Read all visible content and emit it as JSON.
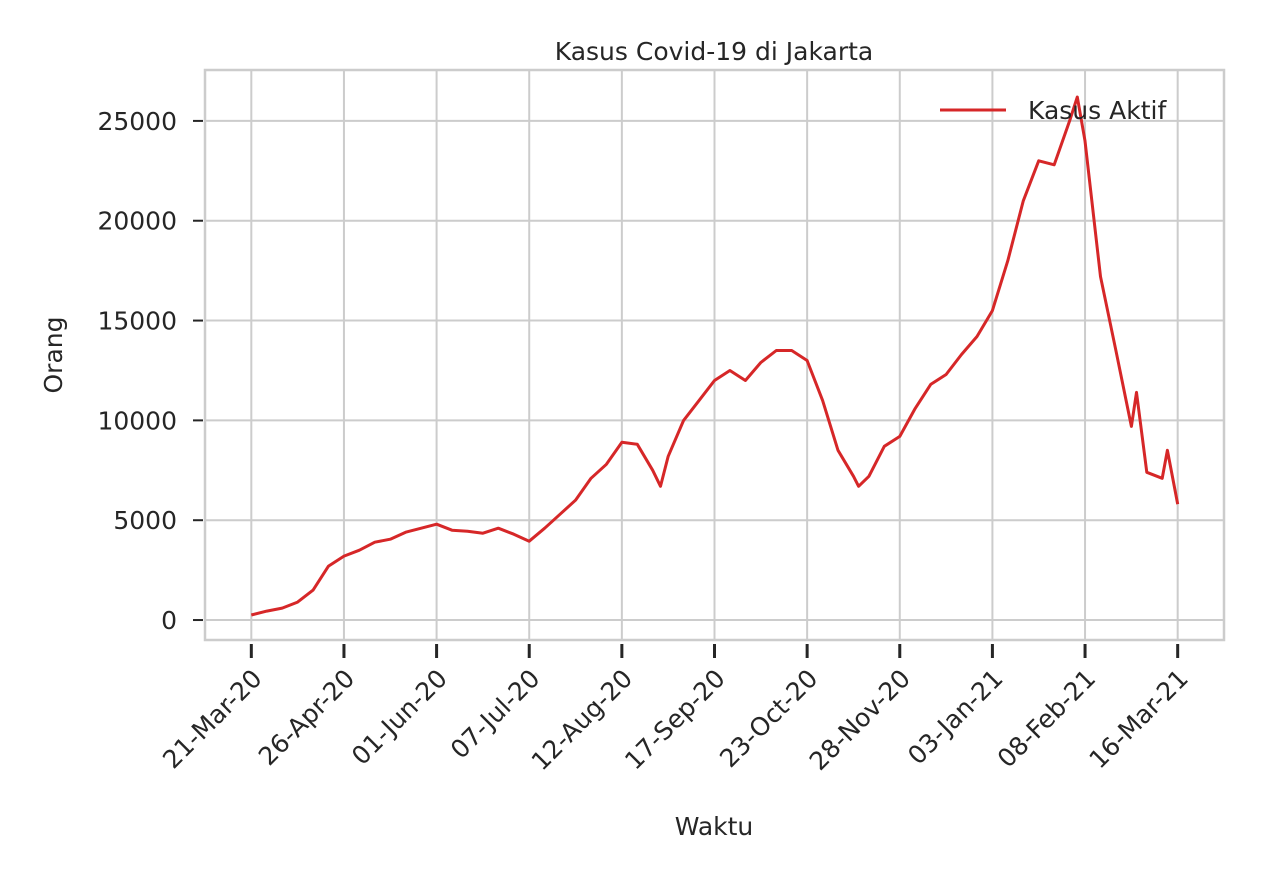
{
  "chart_data": {
    "type": "line",
    "title": "Kasus Covid-19 di Jakarta",
    "xlabel": "Waktu",
    "ylabel": "Orang",
    "x": [
      "2020-03-21",
      "2020-03-27",
      "2020-04-02",
      "2020-04-08",
      "2020-04-14",
      "2020-04-20",
      "2020-04-26",
      "2020-05-02",
      "2020-05-08",
      "2020-05-14",
      "2020-05-20",
      "2020-05-26",
      "2020-06-01",
      "2020-06-07",
      "2020-06-13",
      "2020-06-19",
      "2020-06-25",
      "2020-07-01",
      "2020-07-07",
      "2020-07-13",
      "2020-07-19",
      "2020-07-25",
      "2020-07-31",
      "2020-08-06",
      "2020-08-12",
      "2020-08-18",
      "2020-08-24",
      "2020-08-27",
      "2020-08-30",
      "2020-09-05",
      "2020-09-11",
      "2020-09-17",
      "2020-09-23",
      "2020-09-29",
      "2020-10-05",
      "2020-10-11",
      "2020-10-17",
      "2020-10-23",
      "2020-10-29",
      "2020-11-04",
      "2020-11-10",
      "2020-11-12",
      "2020-11-16",
      "2020-11-22",
      "2020-11-28",
      "2020-12-04",
      "2020-12-10",
      "2020-12-16",
      "2020-12-22",
      "2020-12-28",
      "2021-01-03",
      "2021-01-09",
      "2021-01-15",
      "2021-01-21",
      "2021-01-27",
      "2021-02-02",
      "2021-02-05",
      "2021-02-08",
      "2021-02-14",
      "2021-02-20",
      "2021-02-26",
      "2021-02-28",
      "2021-03-04",
      "2021-03-10",
      "2021-03-12",
      "2021-03-16"
    ],
    "series": [
      {
        "name": "Kasus Aktif",
        "color": "#d62728",
        "values": [
          250,
          450,
          600,
          900,
          1500,
          2700,
          3200,
          3500,
          3900,
          4050,
          4400,
          4600,
          4800,
          4500,
          4450,
          4350,
          4600,
          4300,
          3950,
          4600,
          5300,
          6000,
          7100,
          7800,
          8900,
          8800,
          7500,
          6700,
          8200,
          10000,
          11000,
          12000,
          12500,
          12000,
          12900,
          13500,
          13500,
          13000,
          11000,
          8500,
          7200,
          6700,
          7200,
          8700,
          9200,
          10600,
          11800,
          12300,
          13300,
          14200,
          15500,
          18000,
          21000,
          23000,
          22800,
          25000,
          26200,
          24000,
          17200,
          13500,
          9700,
          11400,
          7400,
          7100,
          8500,
          5800
        ]
      }
    ],
    "xlim": [
      "2020-03-03",
      "2021-04-03"
    ],
    "xticks": [
      {
        "value": "2020-03-21",
        "label": "21-Mar-20"
      },
      {
        "value": "2020-04-26",
        "label": "26-Apr-20"
      },
      {
        "value": "2020-06-01",
        "label": "01-Jun-20"
      },
      {
        "value": "2020-07-07",
        "label": "07-Jul-20"
      },
      {
        "value": "2020-08-12",
        "label": "12-Aug-20"
      },
      {
        "value": "2020-09-17",
        "label": "17-Sep-20"
      },
      {
        "value": "2020-10-23",
        "label": "23-Oct-20"
      },
      {
        "value": "2020-11-28",
        "label": "28-Nov-20"
      },
      {
        "value": "2021-01-03",
        "label": "03-Jan-21"
      },
      {
        "value": "2021-02-08",
        "label": "08-Feb-21"
      },
      {
        "value": "2021-03-16",
        "label": "16-Mar-21"
      }
    ],
    "ylim": [
      -1000,
      27550
    ],
    "yticks": [
      0,
      5000,
      10000,
      15000,
      20000,
      25000
    ],
    "grid": true,
    "legend": "upper right"
  }
}
